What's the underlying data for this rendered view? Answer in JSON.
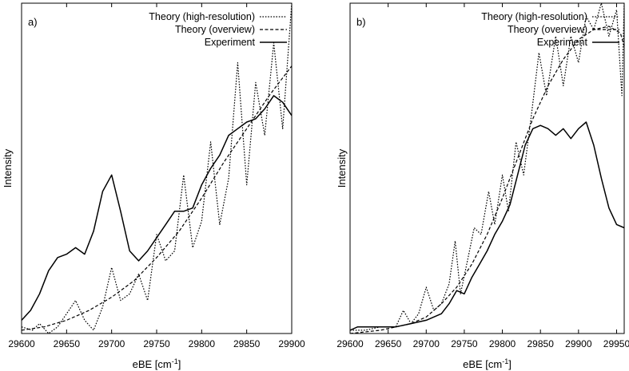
{
  "chart_data": [
    {
      "type": "line",
      "panel_label": "a)",
      "xlabel": "eBE [cm",
      "xlabel_sup": "-1",
      "xlabel_end": "]",
      "ylabel": "Intensity",
      "xlim": [
        29600,
        29900
      ],
      "ylim": [
        0,
        1
      ],
      "y_ticks_labeled": false,
      "x_ticks": [
        29600,
        29650,
        29700,
        29750,
        29800,
        29850,
        29900
      ],
      "legend_position": "top-right",
      "series": [
        {
          "name": "Theory (high-resolution)",
          "style": "dotted",
          "x": [
            29600,
            29612,
            29620,
            29630,
            29640,
            29650,
            29660,
            29670,
            29680,
            29690,
            29700,
            29710,
            29720,
            29730,
            29740,
            29750,
            29760,
            29770,
            29780,
            29790,
            29800,
            29810,
            29820,
            29830,
            29840,
            29850,
            29860,
            29870,
            29880,
            29890,
            29900
          ],
          "y": [
            0.02,
            0.01,
            0.03,
            0.0,
            0.02,
            0.06,
            0.1,
            0.04,
            0.01,
            0.08,
            0.2,
            0.1,
            0.12,
            0.18,
            0.1,
            0.3,
            0.22,
            0.25,
            0.48,
            0.26,
            0.34,
            0.58,
            0.33,
            0.47,
            0.82,
            0.45,
            0.76,
            0.6,
            0.88,
            0.62,
            1.0
          ]
        },
        {
          "name": "Theory (overview)",
          "style": "dashed",
          "x": [
            29600,
            29625,
            29650,
            29675,
            29700,
            29725,
            29750,
            29775,
            29800,
            29825,
            29850,
            29875,
            29900
          ],
          "y": [
            0.01,
            0.02,
            0.04,
            0.07,
            0.11,
            0.16,
            0.23,
            0.31,
            0.41,
            0.52,
            0.62,
            0.72,
            0.81
          ]
        },
        {
          "name": "Experiment",
          "style": "solid",
          "x": [
            29600,
            29610,
            29620,
            29630,
            29640,
            29650,
            29660,
            29670,
            29680,
            29690,
            29700,
            29710,
            29720,
            29730,
            29740,
            29750,
            29760,
            29770,
            29780,
            29790,
            29800,
            29810,
            29820,
            29830,
            29840,
            29850,
            29860,
            29870,
            29880,
            29890,
            29900
          ],
          "y": [
            0.04,
            0.07,
            0.12,
            0.19,
            0.23,
            0.24,
            0.26,
            0.24,
            0.31,
            0.43,
            0.48,
            0.37,
            0.25,
            0.22,
            0.25,
            0.29,
            0.33,
            0.37,
            0.37,
            0.38,
            0.45,
            0.5,
            0.54,
            0.6,
            0.62,
            0.64,
            0.65,
            0.68,
            0.72,
            0.7,
            0.66
          ]
        }
      ]
    },
    {
      "type": "line",
      "panel_label": "b)",
      "xlabel": "eBE [cm",
      "xlabel_sup": "-1",
      "xlabel_end": "]",
      "ylabel": "Intensity",
      "xlim": [
        29600,
        29960
      ],
      "ylim": [
        0,
        1
      ],
      "y_ticks_labeled": false,
      "x_ticks": [
        29600,
        29650,
        29700,
        29750,
        29800,
        29850,
        29900,
        29950
      ],
      "legend_position": "top-right",
      "series": [
        {
          "name": "Theory (high-resolution)",
          "style": "dotted",
          "x": [
            29600,
            29620,
            29640,
            29660,
            29670,
            29680,
            29690,
            29700,
            29710,
            29720,
            29730,
            29738,
            29745,
            29755,
            29763,
            29772,
            29782,
            29790,
            29800,
            29808,
            29818,
            29828,
            29838,
            29848,
            29858,
            29870,
            29880,
            29890,
            29900,
            29910,
            29920,
            29930,
            29940,
            29950,
            29957,
            29960
          ],
          "y": [
            0.01,
            0.01,
            0.02,
            0.02,
            0.07,
            0.03,
            0.06,
            0.14,
            0.07,
            0.09,
            0.15,
            0.28,
            0.12,
            0.23,
            0.32,
            0.3,
            0.43,
            0.33,
            0.48,
            0.37,
            0.58,
            0.48,
            0.66,
            0.85,
            0.72,
            0.9,
            0.75,
            0.9,
            0.82,
            0.96,
            0.92,
            1.0,
            0.9,
            0.98,
            0.72,
            1.0
          ]
        },
        {
          "name": "Theory (overview)",
          "style": "dashed",
          "x": [
            29600,
            29640,
            29680,
            29700,
            29720,
            29740,
            29760,
            29780,
            29800,
            29820,
            29840,
            29860,
            29880,
            29900,
            29920,
            29940,
            29955,
            29960
          ],
          "y": [
            0.0,
            0.01,
            0.03,
            0.05,
            0.09,
            0.14,
            0.21,
            0.3,
            0.41,
            0.53,
            0.65,
            0.75,
            0.83,
            0.89,
            0.92,
            0.93,
            0.91,
            0.87
          ]
        },
        {
          "name": "Experiment",
          "style": "solid",
          "x": [
            29600,
            29610,
            29620,
            29640,
            29660,
            29680,
            29700,
            29720,
            29730,
            29740,
            29750,
            29760,
            29770,
            29780,
            29790,
            29800,
            29810,
            29820,
            29830,
            29840,
            29850,
            29860,
            29870,
            29880,
            29890,
            29900,
            29910,
            29920,
            29930,
            29940,
            29950,
            29960
          ],
          "y": [
            0.01,
            0.02,
            0.02,
            0.02,
            0.02,
            0.03,
            0.04,
            0.06,
            0.09,
            0.13,
            0.12,
            0.17,
            0.21,
            0.25,
            0.3,
            0.34,
            0.39,
            0.48,
            0.57,
            0.62,
            0.63,
            0.62,
            0.6,
            0.62,
            0.59,
            0.62,
            0.64,
            0.57,
            0.47,
            0.38,
            0.33,
            0.32
          ]
        }
      ]
    }
  ]
}
